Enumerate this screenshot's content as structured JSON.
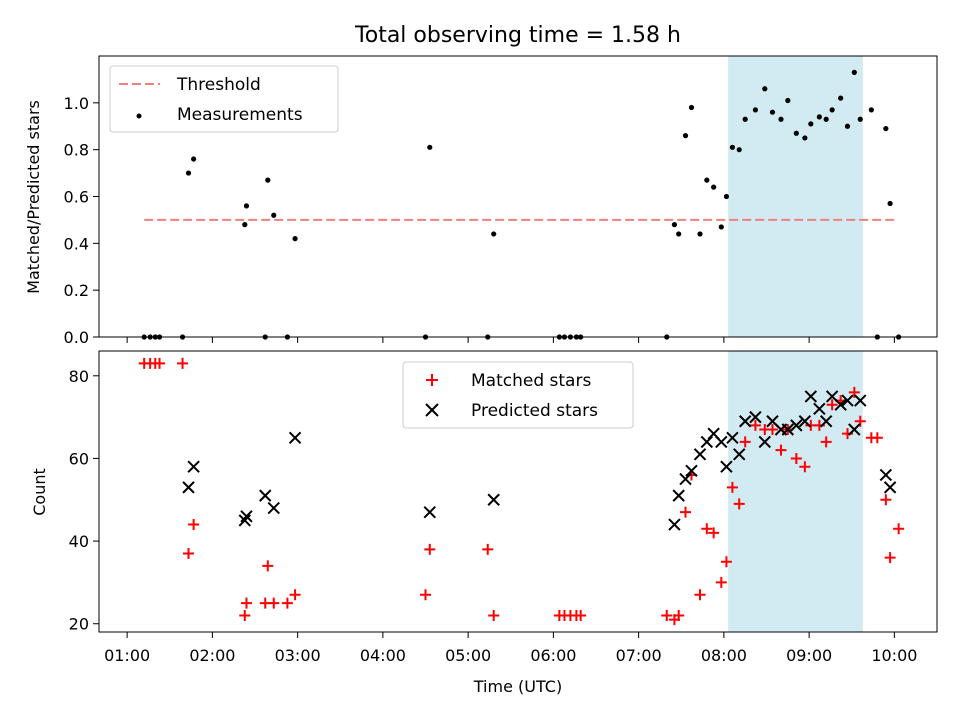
{
  "title": "Total observing time = 1.58 h",
  "xlabel": "Time (UTC)",
  "x_ticks": [
    "01:00",
    "02:00",
    "03:00",
    "04:00",
    "05:00",
    "06:00",
    "07:00",
    "08:00",
    "09:00",
    "10:00"
  ],
  "highlight": {
    "start": 8.05,
    "end": 9.63,
    "color": "#add8e6"
  },
  "colors": {
    "threshold": "#f08080",
    "matched": "#ff0000",
    "predicted": "#000000",
    "measurement": "#000000"
  },
  "chart_data": [
    {
      "type": "scatter",
      "ylabel": "Matched/Predicted stars",
      "xlim": [
        0.67,
        10.5
      ],
      "ylim": [
        0,
        1.2
      ],
      "y_ticks": [
        "0.0",
        "0.2",
        "0.4",
        "0.6",
        "0.8",
        "1.0"
      ],
      "legend": {
        "placement": "top-left",
        "entries": [
          "Threshold",
          "Measurements"
        ]
      },
      "threshold": {
        "name": "Threshold",
        "value": 0.5,
        "x_range": [
          1.2,
          10.0
        ]
      },
      "series": [
        {
          "name": "Measurements",
          "x": [
            1.2,
            1.27,
            1.33,
            1.38,
            1.65,
            1.72,
            1.78,
            2.38,
            2.4,
            2.62,
            2.65,
            2.72,
            2.88,
            2.97,
            4.5,
            4.55,
            5.23,
            5.3,
            6.07,
            6.13,
            6.2,
            6.27,
            6.32,
            7.33,
            7.42,
            7.47,
            7.55,
            7.62,
            7.72,
            7.8,
            7.88,
            7.97,
            8.03,
            8.1,
            8.18,
            8.25,
            8.37,
            8.48,
            8.57,
            8.67,
            8.75,
            8.85,
            8.95,
            9.02,
            9.12,
            9.2,
            9.27,
            9.37,
            9.45,
            9.53,
            9.6,
            9.73,
            9.8,
            9.9,
            9.95,
            10.05
          ],
          "y": [
            0,
            0,
            0,
            0,
            0,
            0.7,
            0.76,
            0.48,
            0.56,
            0,
            0.67,
            0.52,
            0,
            0.42,
            0,
            0.81,
            0,
            0.44,
            0,
            0,
            0,
            0,
            0,
            0,
            0.48,
            0.44,
            0.86,
            0.98,
            0.44,
            0.67,
            0.64,
            0.47,
            0.6,
            0.81,
            0.8,
            0.93,
            0.97,
            1.06,
            0.96,
            0.93,
            1.01,
            0.87,
            0.85,
            0.91,
            0.94,
            0.93,
            0.97,
            1.02,
            0.9,
            1.13,
            0.93,
            0.97,
            0,
            0.89,
            0.57,
            0
          ]
        }
      ]
    },
    {
      "type": "scatter",
      "ylabel": "Count",
      "xlim": [
        0.67,
        10.5
      ],
      "ylim": [
        18,
        86
      ],
      "y_ticks": [
        "20",
        "40",
        "60",
        "80"
      ],
      "legend": {
        "placement": "top-center",
        "entries": [
          "Matched stars",
          "Predicted stars"
        ]
      },
      "series": [
        {
          "name": "Matched stars",
          "x": [
            1.2,
            1.27,
            1.33,
            1.38,
            1.65,
            1.72,
            1.78,
            2.38,
            2.4,
            2.62,
            2.65,
            2.72,
            2.88,
            2.97,
            4.5,
            4.55,
            5.23,
            5.3,
            6.07,
            6.13,
            6.2,
            6.27,
            6.32,
            7.33,
            7.42,
            7.47,
            7.55,
            7.62,
            7.72,
            7.8,
            7.88,
            7.97,
            8.03,
            8.1,
            8.18,
            8.25,
            8.37,
            8.48,
            8.57,
            8.67,
            8.75,
            8.85,
            8.95,
            9.02,
            9.12,
            9.2,
            9.27,
            9.37,
            9.45,
            9.53,
            9.6,
            9.73,
            9.8,
            9.9,
            9.95,
            10.05
          ],
          "y": [
            83,
            83,
            83,
            83,
            83,
            37,
            44,
            22,
            25,
            25,
            34,
            25,
            25,
            27,
            27,
            38,
            38,
            22,
            22,
            22,
            22,
            22,
            22,
            22,
            21,
            22,
            47,
            56,
            27,
            43,
            42,
            30,
            35,
            53,
            49,
            64,
            68,
            67,
            67,
            62,
            67,
            60,
            58,
            68,
            68,
            64,
            73,
            74,
            66,
            76,
            69,
            65,
            65,
            50,
            36,
            43
          ]
        },
        {
          "name": "Predicted stars",
          "x": [
            1.72,
            1.78,
            2.38,
            2.4,
            2.62,
            2.72,
            2.97,
            4.55,
            5.3,
            7.42,
            7.47,
            7.55,
            7.62,
            7.72,
            7.8,
            7.88,
            7.97,
            8.03,
            8.1,
            8.18,
            8.25,
            8.37,
            8.48,
            8.57,
            8.67,
            8.75,
            8.85,
            8.95,
            9.02,
            9.12,
            9.2,
            9.27,
            9.37,
            9.45,
            9.53,
            9.6,
            9.9,
            9.95
          ],
          "y": [
            53,
            58,
            45,
            46,
            51,
            48,
            65,
            47,
            50,
            44,
            51,
            55,
            57,
            61,
            64,
            66,
            64,
            58,
            65,
            61,
            69,
            70,
            64,
            69,
            67,
            67,
            68,
            69,
            75,
            72,
            69,
            75,
            73,
            74,
            67,
            74,
            56,
            53
          ]
        }
      ]
    }
  ]
}
